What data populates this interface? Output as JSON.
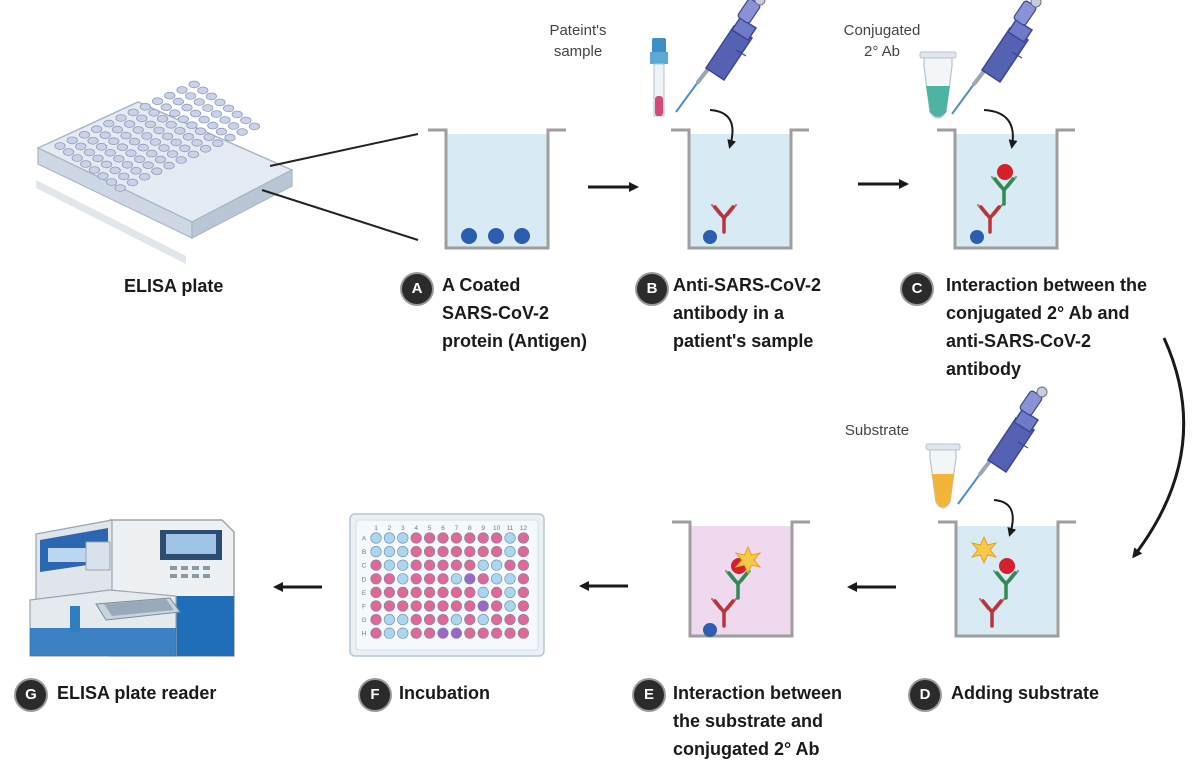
{
  "plate_label": "ELISA plate",
  "reagent_notes": {
    "sample": [
      "Pateint's",
      "sample"
    ],
    "conjugate": [
      "Conjugated",
      "2° Ab"
    ],
    "substrate": "Substrate"
  },
  "steps": [
    {
      "letter": "A",
      "lines": [
        "A Coated",
        "SARS-CoV-2",
        "protein (Antigen)"
      ]
    },
    {
      "letter": "B",
      "lines": [
        "Anti-SARS-CoV-2",
        "antibody in a",
        "patient's sample"
      ]
    },
    {
      "letter": "C",
      "lines": [
        "Interaction between the",
        "conjugated 2° Ab and",
        "anti-SARS-CoV-2",
        "antibody"
      ]
    },
    {
      "letter": "D",
      "lines": [
        "Adding substrate"
      ]
    },
    {
      "letter": "E",
      "lines": [
        "Interaction between",
        "the substrate and",
        "conjugated 2° Ab"
      ]
    },
    {
      "letter": "F",
      "lines": [
        "Incubation"
      ]
    },
    {
      "letter": "G",
      "lines": [
        "ELISA plate reader"
      ]
    }
  ],
  "incubation_plate": {
    "column_labels": [
      "1",
      "2",
      "3",
      "4",
      "5",
      "6",
      "7",
      "8",
      "9",
      "10",
      "11",
      "12"
    ],
    "row_labels": [
      "A",
      "B",
      "C",
      "D",
      "E",
      "F",
      "G",
      "H"
    ]
  },
  "colors": {
    "well_liquid": "#d8eaf4",
    "well_liquid_substrate": "#efd9ef",
    "antigen": "#2d5db0",
    "primary_antibody": "#b8353a",
    "secondary_antibody": "#2f8a55",
    "enzyme": "#d61f2c",
    "substrate_star": "#f7c948",
    "badge": "#2b2b2b",
    "arrow": "#1a1a1a"
  }
}
